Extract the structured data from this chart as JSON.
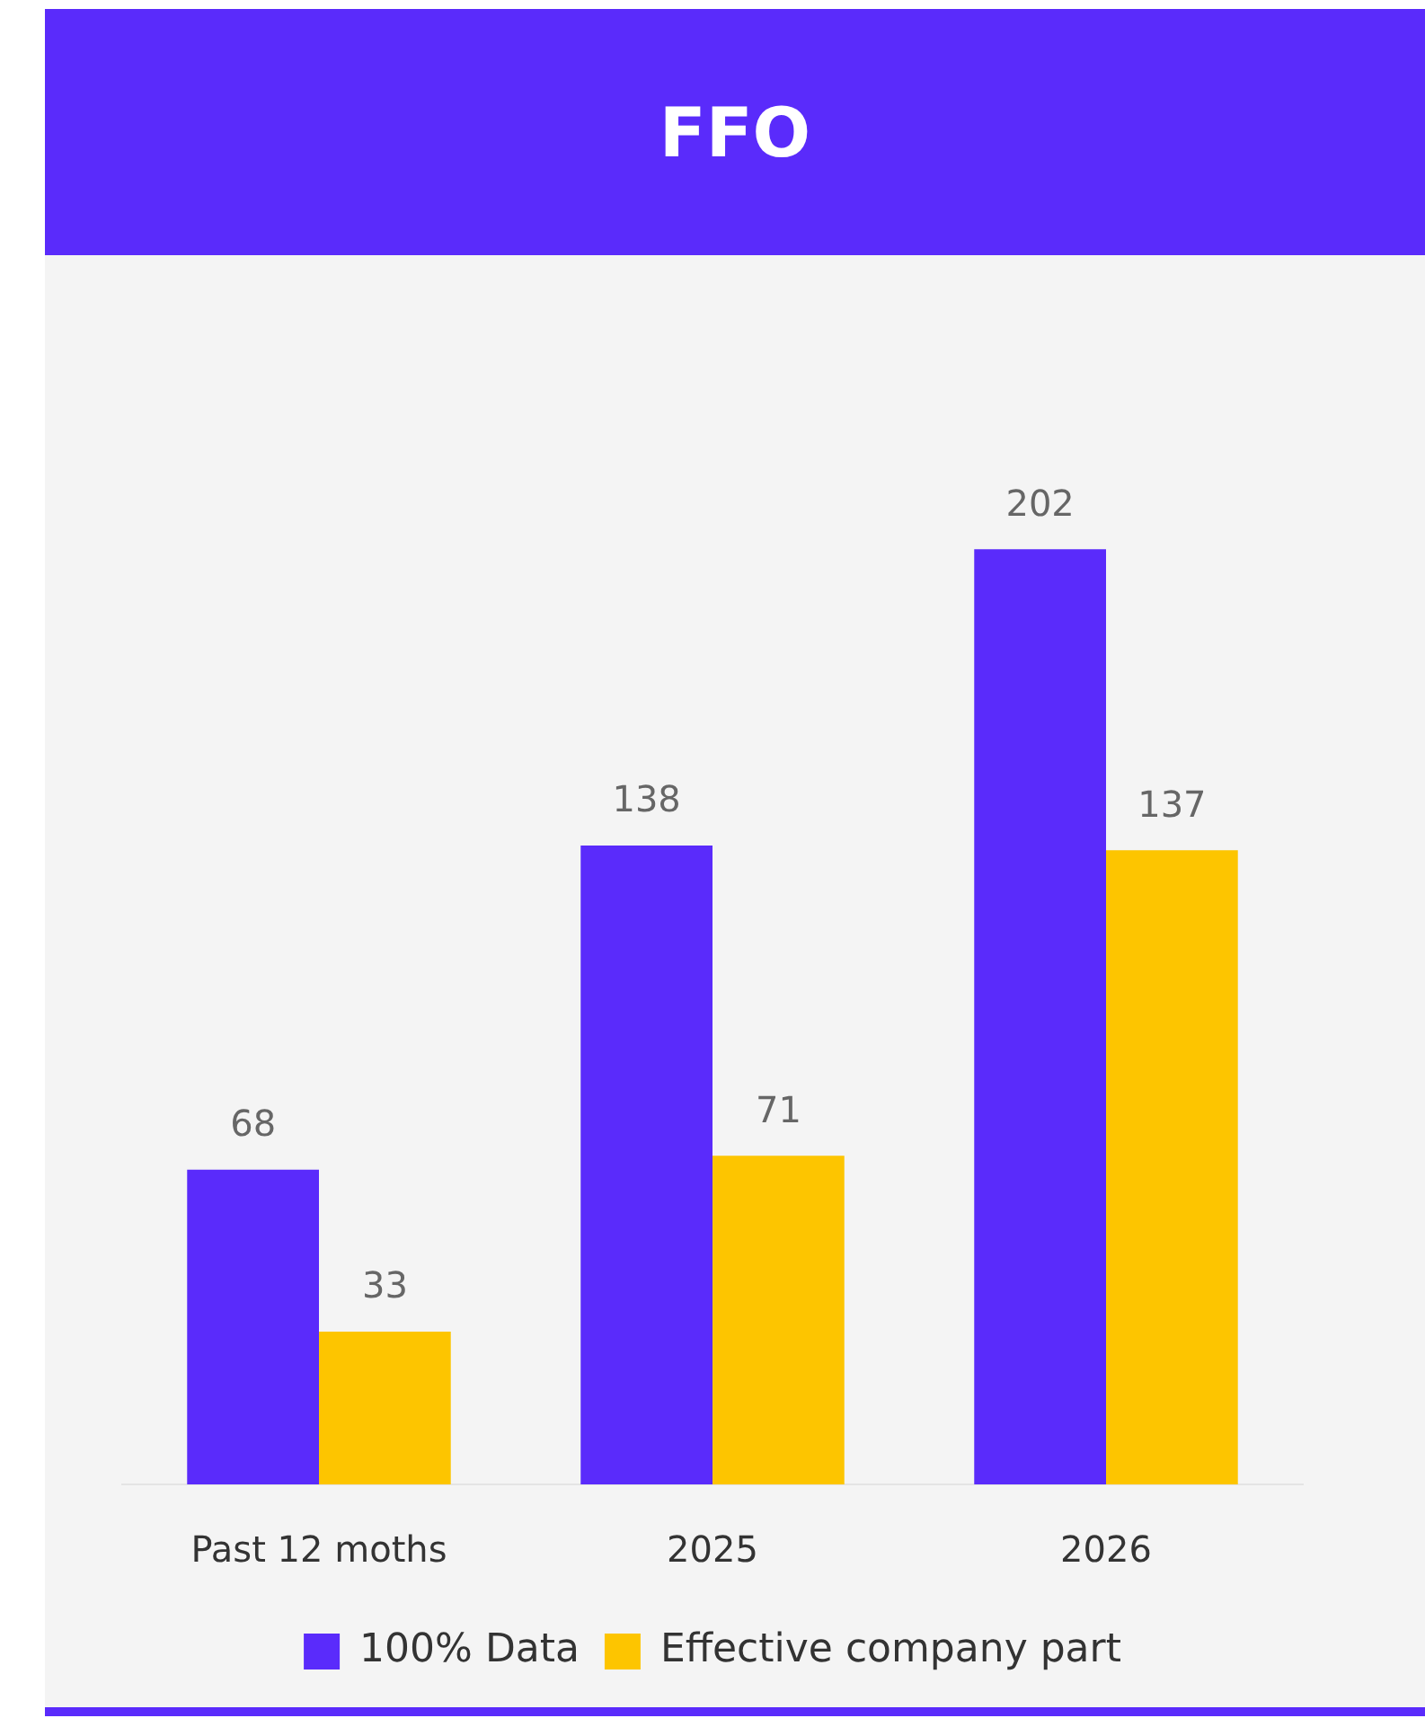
{
  "chart_data": {
    "type": "bar",
    "title": "FFO",
    "categories": [
      "Past 12 moths",
      "2025",
      "2026"
    ],
    "series": [
      {
        "name": "100% Data",
        "color": "#5a2bfb",
        "values": [
          68,
          138,
          202
        ]
      },
      {
        "name": "Effective company part",
        "color": "#fdc500",
        "values": [
          33,
          71,
          137
        ]
      }
    ],
    "data_labels": true,
    "legend": "bottom",
    "grid": false
  }
}
